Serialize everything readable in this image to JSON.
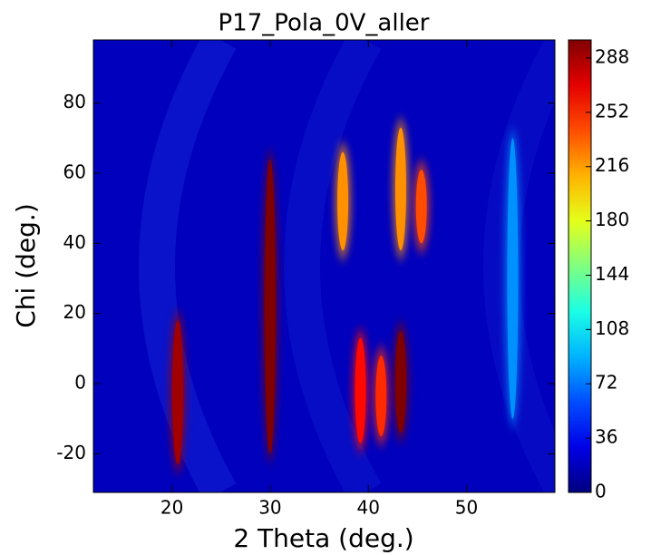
{
  "chart_data": {
    "type": "heatmap",
    "title": "P17_Pola_0V_aller",
    "xlabel": "2 Theta (deg.)",
    "ylabel": "Chi (deg.)",
    "xlim": [
      12,
      59
    ],
    "xticks": [
      20,
      30,
      40,
      50
    ],
    "ylim": [
      -31,
      98
    ],
    "yticks": [
      -20,
      0,
      20,
      40,
      60,
      80
    ],
    "clim": [
      0,
      300
    ],
    "cticks": [
      0,
      36,
      72,
      108,
      144,
      180,
      216,
      252,
      288
    ],
    "colormap": "jet",
    "background": 18,
    "streaks": [
      {
        "x": 20.6,
        "chi_lo": -23,
        "chi_hi": 18,
        "value": 290
      },
      {
        "x": 30.0,
        "chi_lo": -20,
        "chi_hi": 64,
        "value": 300
      },
      {
        "x": 37.4,
        "chi_lo": 38,
        "chi_hi": 66,
        "value": 220
      },
      {
        "x": 39.2,
        "chi_lo": -17,
        "chi_hi": 13,
        "value": 260
      },
      {
        "x": 41.3,
        "chi_lo": -15,
        "chi_hi": 8,
        "value": 250
      },
      {
        "x": 43.3,
        "chi_lo": -14,
        "chi_hi": 15,
        "value": 300
      },
      {
        "x": 43.3,
        "chi_lo": 38,
        "chi_hi": 73,
        "value": 220
      },
      {
        "x": 45.4,
        "chi_lo": 40,
        "chi_hi": 61,
        "value": 240
      },
      {
        "x": 54.7,
        "chi_lo": -10,
        "chi_hi": 70,
        "value": 80
      }
    ]
  }
}
